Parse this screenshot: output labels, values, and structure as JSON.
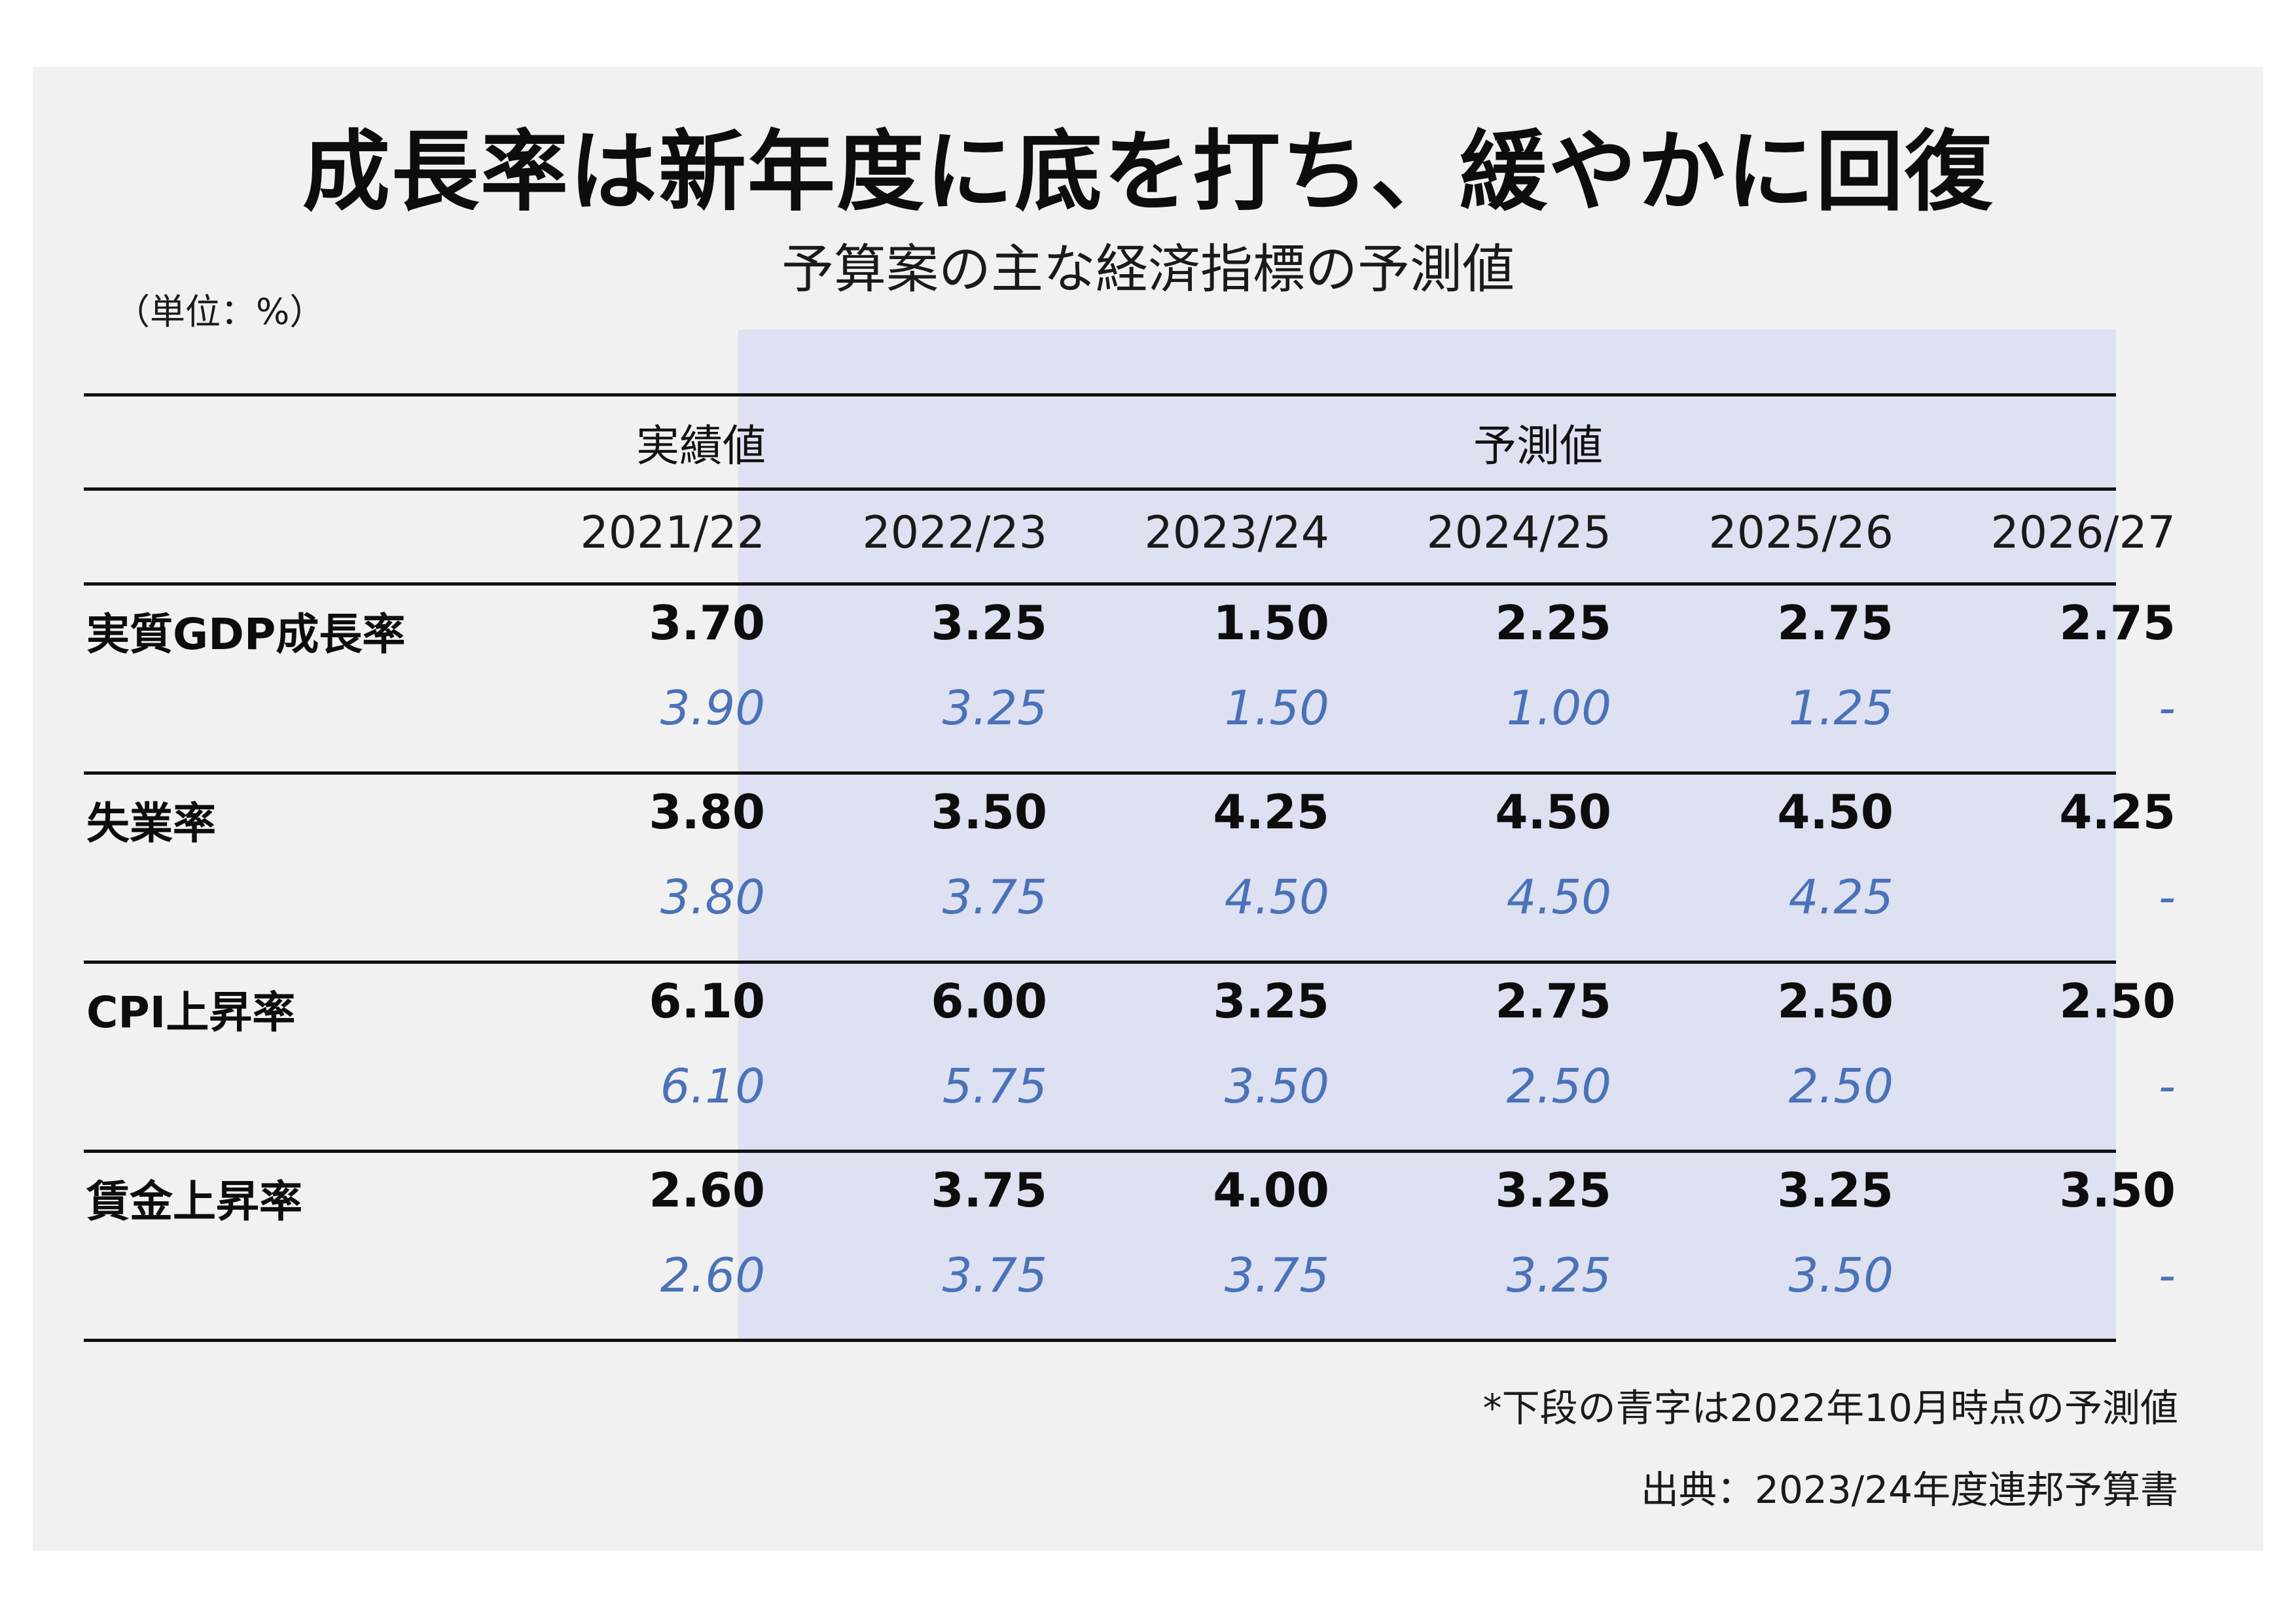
{
  "title": "成長率は新年度に底を打ち、緩やかに回復",
  "subtitle": "予算案の主な経済指標の予測値",
  "unit": "（単位：%）",
  "table": {
    "group_actual": "実績値",
    "group_forecast": "予測値",
    "years": [
      "2021/22",
      "2022/23",
      "2023/24",
      "2024/25",
      "2025/26",
      "2026/27"
    ],
    "rows": [
      {
        "label": "実質GDP成長率",
        "current": [
          "3.70",
          "3.25",
          "1.50",
          "2.25",
          "2.75",
          "2.75"
        ],
        "previous": [
          "3.90",
          "3.25",
          "1.50",
          "1.00",
          "1.25",
          "-"
        ]
      },
      {
        "label": "失業率",
        "current": [
          "3.80",
          "3.50",
          "4.25",
          "4.50",
          "4.50",
          "4.25"
        ],
        "previous": [
          "3.80",
          "3.75",
          "4.50",
          "4.50",
          "4.25",
          "-"
        ]
      },
      {
        "label": "CPI上昇率",
        "current": [
          "6.10",
          "6.00",
          "3.25",
          "2.75",
          "2.50",
          "2.50"
        ],
        "previous": [
          "6.10",
          "5.75",
          "3.50",
          "2.50",
          "2.50",
          "-"
        ]
      },
      {
        "label": "賃金上昇率",
        "current": [
          "2.60",
          "3.75",
          "4.00",
          "3.25",
          "3.25",
          "3.50"
        ],
        "previous": [
          "2.60",
          "3.75",
          "3.75",
          "3.25",
          "3.50",
          "-"
        ]
      }
    ]
  },
  "footnote": "*下段の青字は2022年10月時点の予測値",
  "source": "出典：2023/24年度連邦予算書",
  "colors": {
    "background": "#f1f1f1",
    "forecast_shading": "#dde1f2",
    "previous_forecast_text": "#4a72b8",
    "rule": "#111111"
  }
}
